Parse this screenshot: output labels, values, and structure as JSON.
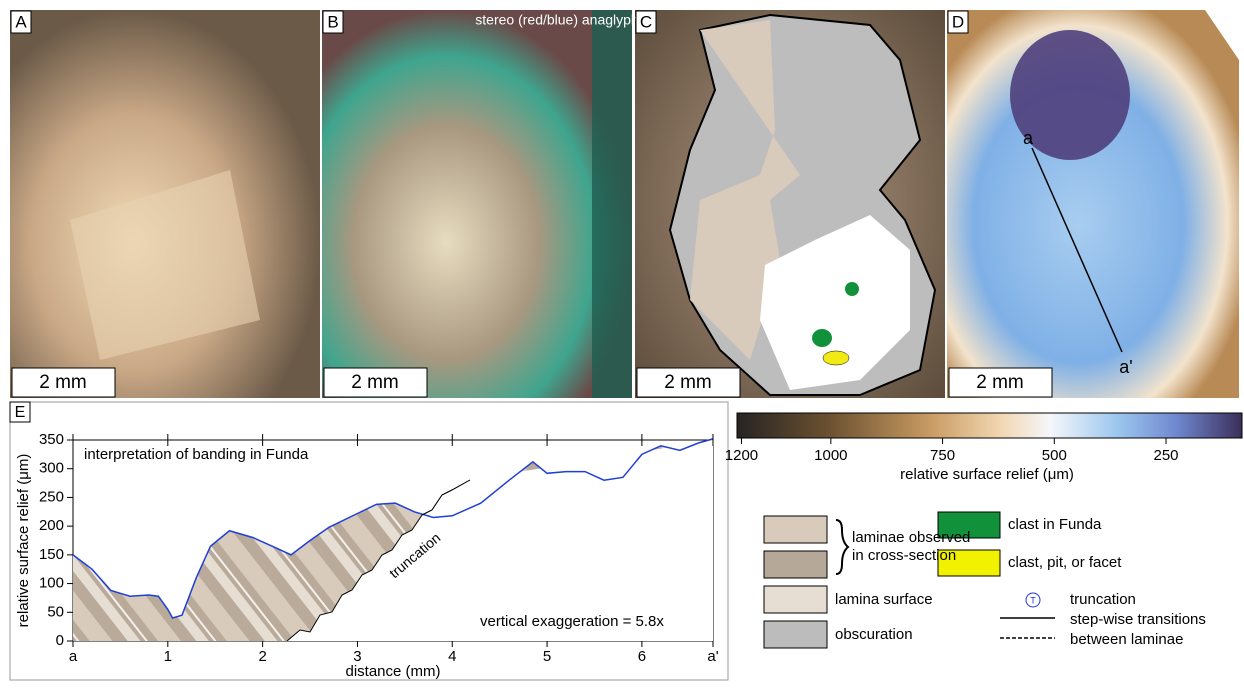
{
  "panels": [
    {
      "label": "A",
      "scale": "2 mm"
    },
    {
      "label": "B",
      "scale": "2 mm",
      "caption": "stereo (red/blue) anaglyph"
    },
    {
      "label": "C",
      "scale": "2 mm"
    },
    {
      "label": "D",
      "scale": "2 mm",
      "start": "a",
      "end": "a'"
    }
  ],
  "chart_data": {
    "type": "line",
    "panel_label": "E",
    "title": "interpretation of banding in Funda",
    "x_label": "distance (mm)",
    "y_label": "relative surface relief (μm)",
    "annotations": [
      "truncation",
      "vertical exaggeration = 5.8x"
    ],
    "x": [
      0,
      0.2,
      0.4,
      0.6,
      0.8,
      0.9,
      1.0,
      1.05,
      1.15,
      1.3,
      1.45,
      1.65,
      1.9,
      2.1,
      2.3,
      2.5,
      2.7,
      3.0,
      3.2,
      3.4,
      3.6,
      3.8,
      4.0,
      4.3,
      4.6,
      4.85,
      5.0,
      5.2,
      5.4,
      5.6,
      5.8,
      6.0,
      6.2,
      6.4,
      6.6,
      6.75
    ],
    "series": [
      {
        "color": "#1f3fd6",
        "values": [
          150,
          125,
          88,
          78,
          80,
          78,
          55,
          40,
          45,
          110,
          165,
          192,
          180,
          165,
          150,
          175,
          198,
          222,
          238,
          240,
          225,
          215,
          218,
          240,
          280,
          312,
          292,
          295,
          295,
          280,
          285,
          325,
          340,
          332,
          345,
          352
        ]
      }
    ],
    "xlim": [
      0,
      6.75
    ],
    "ylim": [
      0,
      350
    ],
    "xticks": [
      {
        "value": 0,
        "label": "a"
      },
      1,
      2,
      3,
      4,
      5,
      6,
      {
        "value": 6.75,
        "label": "a'"
      }
    ],
    "yticks": [
      0,
      50,
      100,
      150,
      200,
      250,
      300,
      350
    ]
  },
  "colorbar": {
    "label": "relative surface relief (μm)",
    "lim": [
      1210,
      80
    ],
    "ticks": [
      1200,
      1000,
      750,
      500,
      250
    ]
  },
  "legend": {
    "laminae": [
      "laminae observed",
      "in cross-section"
    ],
    "lamina_surface": "lamina surface",
    "obscuration": "obscuration",
    "clast": "clast in Funda",
    "pit": "clast, pit, or facet",
    "truncation": "truncation",
    "truncation_symbol": "T",
    "transitions": [
      "step-wise transitions",
      "between laminae"
    ]
  }
}
